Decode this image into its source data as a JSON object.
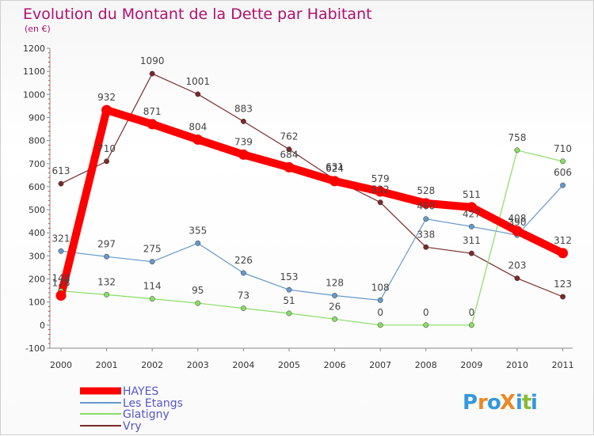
{
  "chart_data": {
    "type": "line",
    "title": "Evolution du Montant de la Dette par Habitant",
    "subtitle": "(en €)",
    "xlabel": "",
    "ylabel": "",
    "x": [
      "2000",
      "2001",
      "2002",
      "2003",
      "2004",
      "2005",
      "2006",
      "2007",
      "2008",
      "2009",
      "2010",
      "2011"
    ],
    "ylim": [
      -100,
      1200
    ],
    "yticks": [
      -100,
      0,
      100,
      200,
      300,
      400,
      500,
      600,
      700,
      800,
      900,
      1000,
      1100,
      1200
    ],
    "grid": false,
    "legend": "bottom-left",
    "series": [
      {
        "name": "HAYES",
        "color": "#ff0000",
        "values": [
          128,
          932,
          871,
          804,
          739,
          684,
          624,
          579,
          528,
          511,
          408,
          312
        ],
        "labels": [
          "128",
          "932",
          "871",
          "804",
          "739",
          "684",
          "624",
          "579",
          "528",
          "511",
          "408",
          "312"
        ]
      },
      {
        "name": "Les Etangs",
        "color": "#6699cc",
        "values": [
          321,
          297,
          275,
          355,
          226,
          153,
          128,
          108,
          460,
          427,
          390,
          606
        ],
        "labels": [
          "321",
          "297",
          "275",
          "355",
          "226",
          "153",
          "128",
          "108",
          "460",
          "427",
          "390",
          "606"
        ]
      },
      {
        "name": "Glatigny",
        "color": "#88dd66",
        "values": [
          148,
          132,
          114,
          95,
          73,
          51,
          26,
          0,
          0,
          0,
          758,
          710
        ],
        "labels": [
          "148",
          "132",
          "114",
          "95",
          "73",
          "51",
          "26",
          "0",
          "0",
          "0",
          "758",
          "710"
        ]
      },
      {
        "name": "Vry",
        "color": "#7a2a2a",
        "values": [
          613,
          710,
          1090,
          1001,
          883,
          762,
          631,
          532,
          338,
          311,
          203,
          123
        ],
        "labels": [
          "613",
          "710",
          "1090",
          "1001",
          "883",
          "762",
          "631",
          "532",
          "338",
          "311",
          "203",
          "123"
        ]
      }
    ]
  },
  "logo": {
    "text": "ProXiti",
    "letters": [
      "P",
      "r",
      "o",
      "X",
      "i",
      "t",
      "i"
    ],
    "colors": [
      "#3399dd",
      "#ee8822",
      "#3399dd",
      "#ee8822",
      "#3399dd",
      "#88bb33",
      "#3399dd"
    ]
  }
}
